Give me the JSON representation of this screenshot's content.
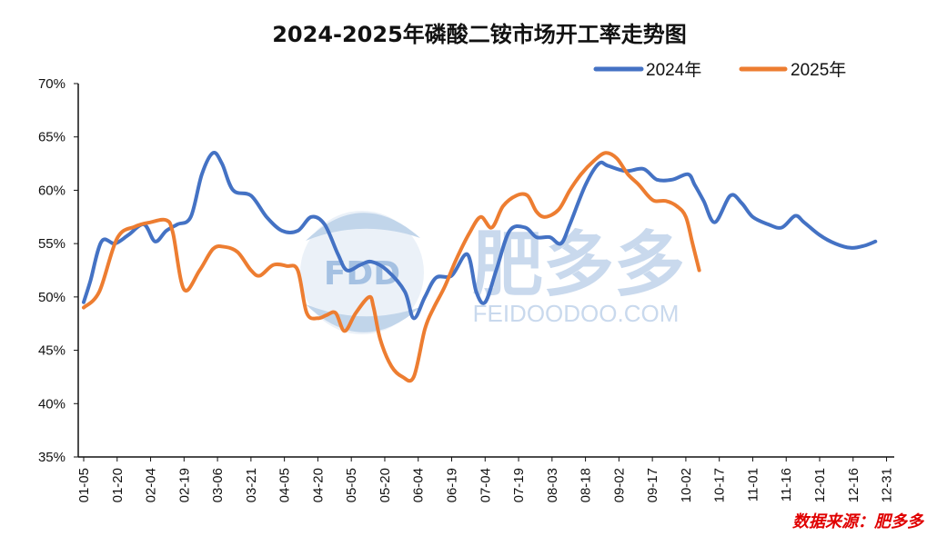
{
  "chart_data": {
    "type": "line",
    "title": "2024-2025年磷酸二铵市场开工率走势图",
    "xlabel": "",
    "ylabel": "",
    "y_ticks": [
      "35%",
      "40%",
      "45%",
      "50%",
      "55%",
      "60%",
      "65%",
      "70%"
    ],
    "ylim": [
      35,
      70
    ],
    "x_ticks": [
      "01-05",
      "01-20",
      "02-04",
      "02-19",
      "03-06",
      "03-21",
      "04-05",
      "04-20",
      "05-05",
      "05-20",
      "06-04",
      "06-19",
      "07-04",
      "07-19",
      "08-03",
      "08-18",
      "09-02",
      "09-17",
      "10-02",
      "10-17",
      "11-01",
      "11-16",
      "12-01",
      "12-16",
      "12-31"
    ],
    "x_range_days": [
      5,
      366
    ],
    "legend_position": "top-right",
    "grid": false,
    "series": [
      {
        "name": "2024年",
        "color": "#4472C4",
        "points": [
          [
            5,
            49.5
          ],
          [
            8,
            51.5
          ],
          [
            13,
            55.2
          ],
          [
            19,
            55
          ],
          [
            25,
            55.8
          ],
          [
            32,
            56.8
          ],
          [
            37,
            55.2
          ],
          [
            42,
            56.2
          ],
          [
            47,
            56.8
          ],
          [
            53,
            57.5
          ],
          [
            58,
            61.5
          ],
          [
            63,
            63.5
          ],
          [
            67,
            62.5
          ],
          [
            72,
            60
          ],
          [
            80,
            59.5
          ],
          [
            87,
            57.5
          ],
          [
            94,
            56.2
          ],
          [
            101,
            56.2
          ],
          [
            107,
            57.5
          ],
          [
            113,
            56.8
          ],
          [
            119,
            54
          ],
          [
            123,
            52.5
          ],
          [
            129,
            53
          ],
          [
            134,
            53.3
          ],
          [
            141,
            52.5
          ],
          [
            149,
            50.5
          ],
          [
            153,
            48
          ],
          [
            158,
            50
          ],
          [
            163,
            51.8
          ],
          [
            170,
            52
          ],
          [
            177,
            54
          ],
          [
            181,
            50.5
          ],
          [
            185,
            49.5
          ],
          [
            190,
            52.5
          ],
          [
            196,
            56.2
          ],
          [
            203,
            56.5
          ],
          [
            208,
            55.6
          ],
          [
            214,
            55.6
          ],
          [
            219,
            55
          ],
          [
            223,
            56.8
          ],
          [
            230,
            60.5
          ],
          [
            236,
            62.5
          ],
          [
            240,
            62.3
          ],
          [
            248,
            61.8
          ],
          [
            256,
            62
          ],
          [
            262,
            61
          ],
          [
            269,
            61
          ],
          [
            276,
            61.5
          ],
          [
            279,
            60.5
          ],
          [
            283,
            59
          ],
          [
            288,
            57
          ],
          [
            295,
            59.5
          ],
          [
            300,
            58.8
          ],
          [
            305,
            57.5
          ],
          [
            312,
            56.8
          ],
          [
            318,
            56.5
          ],
          [
            324,
            57.6
          ],
          [
            328,
            57
          ],
          [
            335,
            55.8
          ],
          [
            342,
            55
          ],
          [
            349,
            54.6
          ],
          [
            355,
            54.8
          ],
          [
            360,
            55.2
          ]
        ]
      },
      {
        "name": "2025年",
        "color": "#ED7D31",
        "points": [
          [
            5,
            49
          ],
          [
            12,
            50.5
          ],
          [
            20,
            55.5
          ],
          [
            28,
            56.6
          ],
          [
            35,
            57
          ],
          [
            42,
            57.2
          ],
          [
            45,
            56
          ],
          [
            50,
            50.7
          ],
          [
            57,
            52.5
          ],
          [
            63,
            54.5
          ],
          [
            68,
            54.7
          ],
          [
            74,
            54.2
          ],
          [
            80,
            52.5
          ],
          [
            84,
            52
          ],
          [
            90,
            53
          ],
          [
            96,
            52.9
          ],
          [
            101,
            52.5
          ],
          [
            105,
            48.5
          ],
          [
            110,
            48
          ],
          [
            114,
            48.3
          ],
          [
            118,
            48.5
          ],
          [
            122,
            46.8
          ],
          [
            127,
            48.5
          ],
          [
            133,
            50
          ],
          [
            135,
            49
          ],
          [
            138,
            46
          ],
          [
            143,
            43.5
          ],
          [
            148,
            42.5
          ],
          [
            153,
            42.5
          ],
          [
            158,
            47
          ],
          [
            162,
            49
          ],
          [
            167,
            51
          ],
          [
            172,
            53.5
          ],
          [
            178,
            56
          ],
          [
            183,
            57.5
          ],
          [
            188,
            56.5
          ],
          [
            193,
            58.5
          ],
          [
            199,
            59.5
          ],
          [
            204,
            59.5
          ],
          [
            208,
            58
          ],
          [
            212,
            57.5
          ],
          [
            218,
            58.2
          ],
          [
            223,
            60
          ],
          [
            228,
            61.5
          ],
          [
            234,
            62.8
          ],
          [
            239,
            63.5
          ],
          [
            244,
            63
          ],
          [
            249,
            61.5
          ],
          [
            254,
            60.5
          ],
          [
            258,
            59.5
          ],
          [
            261,
            59
          ],
          [
            266,
            59
          ],
          [
            271,
            58.5
          ],
          [
            275,
            57.5
          ],
          [
            278,
            55
          ],
          [
            281,
            52.5
          ]
        ]
      }
    ]
  },
  "watermark": {
    "logo_text": "FDD",
    "brand_text": "肥多多",
    "url_text": "FEIDOODOO.COM"
  },
  "source_text": "数据来源：肥多多"
}
